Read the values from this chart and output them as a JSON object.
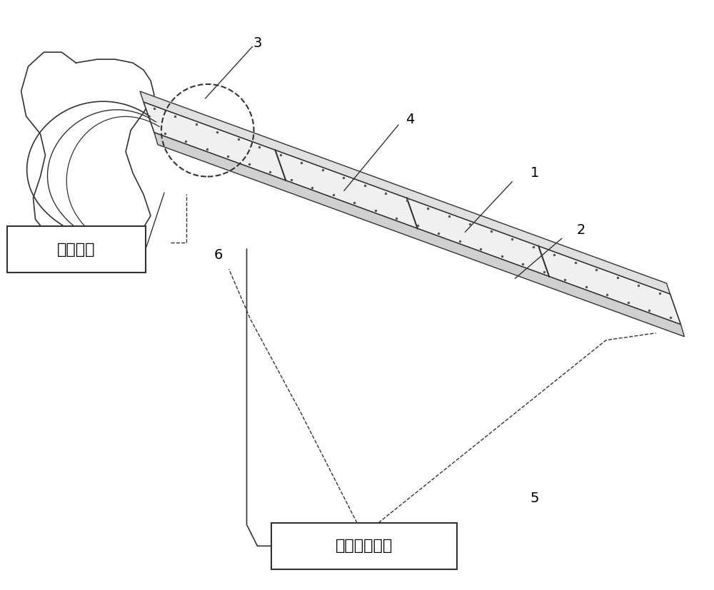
{
  "bg_color": "#ffffff",
  "line_color": "#333333",
  "label_1": "1",
  "label_2": "2",
  "label_3": "3",
  "label_4": "4",
  "label_5": "5",
  "label_6": "6",
  "box1_text": "主控模块",
  "box2_text": "光学测量模块",
  "font_size_label": 14,
  "font_size_box": 16
}
